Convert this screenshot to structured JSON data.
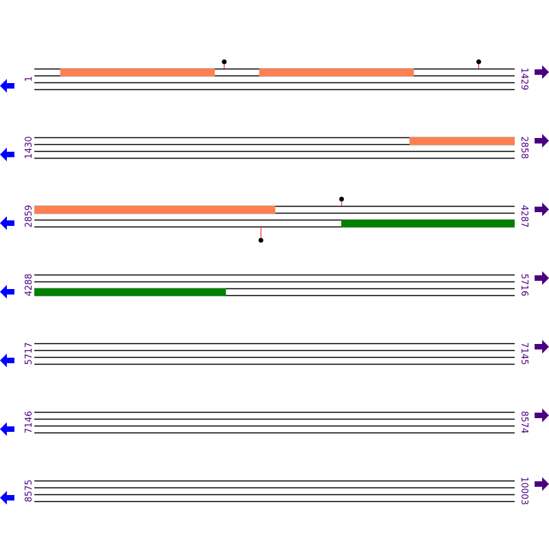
{
  "colors": {
    "forward_feature": "#ff7f50",
    "reverse_feature": "#008000",
    "line": "#000000",
    "marker_stem": "#ff0000",
    "label": "#4b0082",
    "left_arrow": "#0000ff",
    "right_arrow": "#4b0082"
  },
  "rows": [
    {
      "start": 1,
      "end": 1429
    },
    {
      "start": 1430,
      "end": 2858
    },
    {
      "start": 2859,
      "end": 4287
    },
    {
      "start": 4288,
      "end": 5716
    },
    {
      "start": 5717,
      "end": 7145
    },
    {
      "start": 7146,
      "end": 8574
    },
    {
      "start": 8575,
      "end": 10003
    }
  ],
  "features": [
    {
      "strand": "forward",
      "start": 78,
      "end": 537
    },
    {
      "strand": "forward",
      "start": 670,
      "end": 1129
    },
    {
      "strand": "forward",
      "start": 2546,
      "end": 2858
    },
    {
      "strand": "forward",
      "start": 2859,
      "end": 3575
    },
    {
      "strand": "reverse",
      "start": 3772,
      "end": 4287
    },
    {
      "strand": "reverse",
      "start": 4288,
      "end": 4857
    }
  ],
  "markers": [
    {
      "strand": "forward",
      "position": 566
    },
    {
      "strand": "forward",
      "position": 1323
    },
    {
      "strand": "forward",
      "position": 3773
    },
    {
      "strand": "reverse",
      "position": 3533
    }
  ],
  "icons": {
    "left": "arrow-left-icon",
    "right": "arrow-right-icon"
  }
}
